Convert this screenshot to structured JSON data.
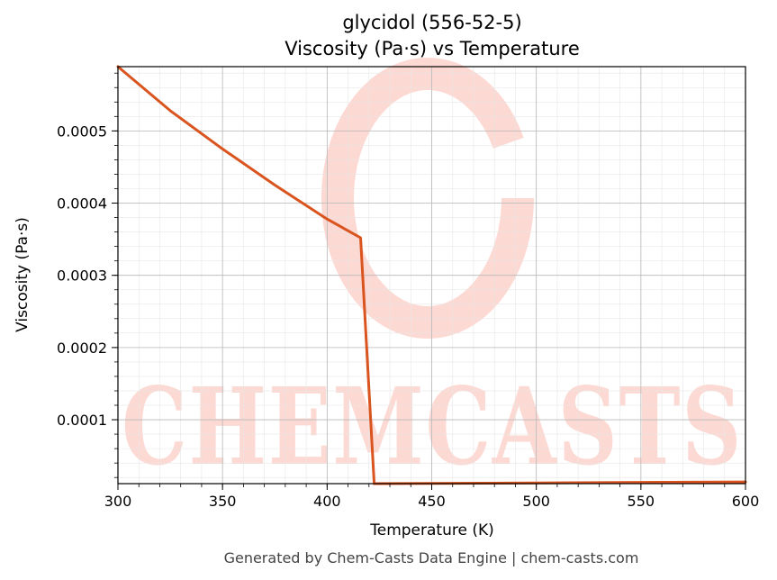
{
  "chart_data": {
    "type": "line",
    "title": "glycidol (556-52-5)",
    "subtitle": "Viscosity (Pa·s) vs Temperature",
    "xlabel": "Temperature (K)",
    "ylabel": "Viscosity (Pa·s)",
    "xlim": [
      300,
      600
    ],
    "ylim": [
      1.15e-05,
      0.000589
    ],
    "x_ticks": [
      300,
      350,
      400,
      450,
      500,
      550,
      600
    ],
    "x_tick_labels": [
      "300",
      "350",
      "400",
      "450",
      "500",
      "550",
      "600"
    ],
    "y_ticks": [
      0.0001,
      0.0002,
      0.0003,
      0.0004,
      0.0005
    ],
    "y_tick_labels": [
      "0.0001",
      "0.0002",
      "0.0003",
      "0.0004",
      "0.0005"
    ],
    "grid": true,
    "series": [
      {
        "color": "#d9541e",
        "x": [
          300,
          325,
          350,
          375,
          400,
          416,
          422.5,
          450,
          500,
          550,
          600
        ],
        "y": [
          0.000589,
          0.000528,
          0.000475,
          0.000425,
          0.000378,
          0.000352,
          1.15e-05,
          1.18e-05,
          1.25e-05,
          1.32e-05,
          1.39e-05
        ]
      }
    ]
  },
  "watermark": {
    "text": "CHEMCASTS",
    "color": "#fdd9d3"
  },
  "footer": "Generated by Chem-Casts Data Engine | chem-casts.com"
}
